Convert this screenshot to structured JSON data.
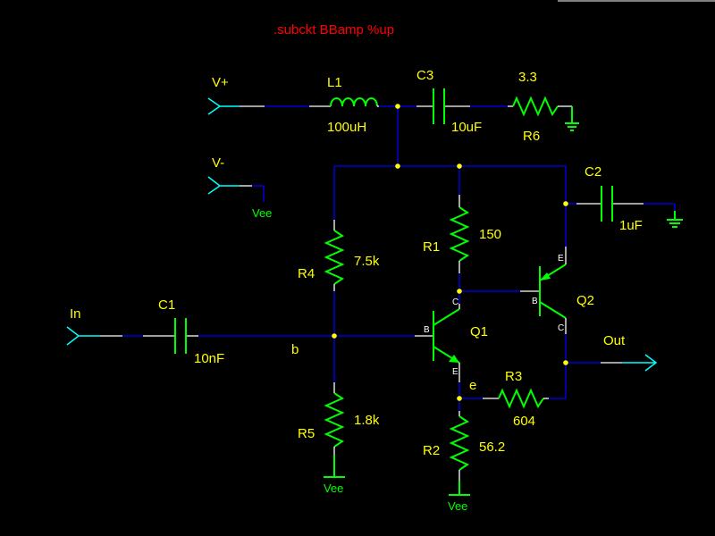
{
  "title": ".subckt BBamp %up",
  "ports": {
    "vplus": "V+",
    "vminus": "V-",
    "in": "In",
    "out": "Out"
  },
  "components": {
    "L1": {
      "name": "L1",
      "value": "100uH"
    },
    "C3": {
      "name": "C3",
      "value": "10uF"
    },
    "R6": {
      "name": "R6",
      "value": "3.3"
    },
    "C2": {
      "name": "C2",
      "value": "1uF"
    },
    "R4": {
      "name": "R4",
      "value": "7.5k"
    },
    "R1": {
      "name": "R1",
      "value": "150"
    },
    "C1": {
      "name": "C1",
      "value": "10nF"
    },
    "R5": {
      "name": "R5",
      "value": "1.8k"
    },
    "R3": {
      "name": "R3",
      "value": "604"
    },
    "R2": {
      "name": "R2",
      "value": "56.2"
    },
    "Q1": {
      "name": "Q1",
      "pins": {
        "b": "B",
        "c": "C",
        "e": "E"
      }
    },
    "Q2": {
      "name": "Q2",
      "pins": {
        "b": "B",
        "c": "C",
        "e": "E"
      }
    }
  },
  "nets": {
    "b": "b",
    "e": "e"
  },
  "supply": {
    "vee": "Vee"
  },
  "colors": {
    "background": "#000000",
    "wire": "#0000ff",
    "component": "#00ff00",
    "label": "#ffff00",
    "port": "#00ffff",
    "title": "#ff0000",
    "node": "#ffff00"
  }
}
